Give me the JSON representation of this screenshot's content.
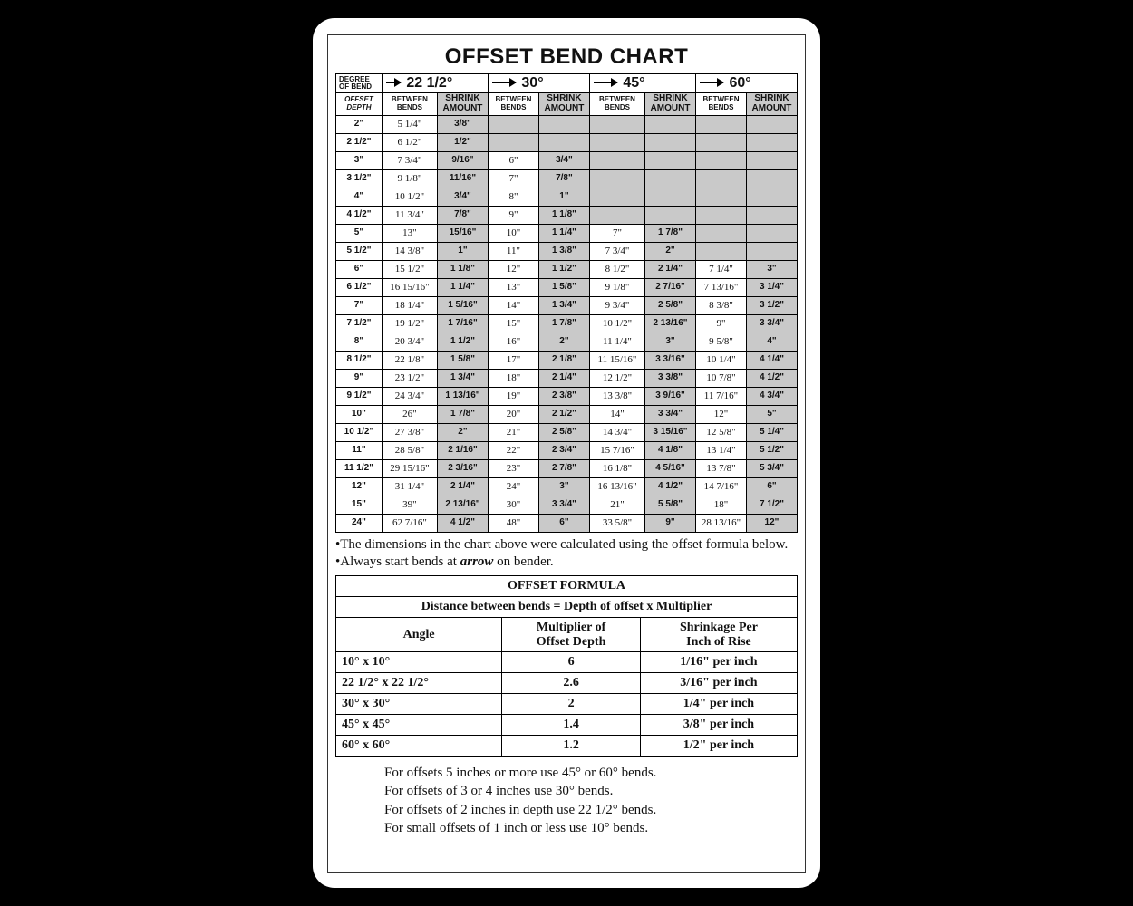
{
  "title": "OFFSET BEND CHART",
  "header": {
    "degree_label_l1": "DEGREE",
    "degree_label_l2": "OF BEND",
    "offset_label_l1": "OFFSET",
    "offset_label_l2": "DEPTH",
    "between_l1": "BETWEEN",
    "between_l2": "BENDS",
    "shrink_l1": "SHRINK",
    "shrink_l2": "AMOUNT",
    "degrees": [
      "22 1/2°",
      "30°",
      "45°",
      "60°"
    ]
  },
  "rows": [
    {
      "d": "2\"",
      "a": [
        "5 1/4\"",
        "3/8\""
      ],
      "b": [
        "",
        ""
      ],
      "c": [
        "",
        ""
      ],
      "e": [
        "",
        ""
      ]
    },
    {
      "d": "2 1/2\"",
      "a": [
        "6 1/2\"",
        "1/2\""
      ],
      "b": [
        "",
        ""
      ],
      "c": [
        "",
        ""
      ],
      "e": [
        "",
        ""
      ]
    },
    {
      "d": "3\"",
      "a": [
        "7 3/4\"",
        "9/16\""
      ],
      "b": [
        "6\"",
        "3/4\""
      ],
      "c": [
        "",
        ""
      ],
      "e": [
        "",
        ""
      ]
    },
    {
      "d": "3 1/2\"",
      "a": [
        "9 1/8\"",
        "11/16\""
      ],
      "b": [
        "7\"",
        "7/8\""
      ],
      "c": [
        "",
        ""
      ],
      "e": [
        "",
        ""
      ]
    },
    {
      "d": "4\"",
      "a": [
        "10 1/2\"",
        "3/4\""
      ],
      "b": [
        "8\"",
        "1\""
      ],
      "c": [
        "",
        ""
      ],
      "e": [
        "",
        ""
      ]
    },
    {
      "d": "4 1/2\"",
      "a": [
        "11 3/4\"",
        "7/8\""
      ],
      "b": [
        "9\"",
        "1 1/8\""
      ],
      "c": [
        "",
        ""
      ],
      "e": [
        "",
        ""
      ]
    },
    {
      "d": "5\"",
      "a": [
        "13\"",
        "15/16\""
      ],
      "b": [
        "10\"",
        "1 1/4\""
      ],
      "c": [
        "7\"",
        "1 7/8\""
      ],
      "e": [
        "",
        ""
      ]
    },
    {
      "d": "5 1/2\"",
      "a": [
        "14 3/8\"",
        "1\""
      ],
      "b": [
        "11\"",
        "1 3/8\""
      ],
      "c": [
        "7 3/4\"",
        "2\""
      ],
      "e": [
        "",
        ""
      ]
    },
    {
      "d": "6\"",
      "a": [
        "15 1/2\"",
        "1 1/8\""
      ],
      "b": [
        "12\"",
        "1 1/2\""
      ],
      "c": [
        "8 1/2\"",
        "2 1/4\""
      ],
      "e": [
        "7 1/4\"",
        "3\""
      ]
    },
    {
      "d": "6 1/2\"",
      "a": [
        "16 15/16\"",
        "1 1/4\""
      ],
      "b": [
        "13\"",
        "1 5/8\""
      ],
      "c": [
        "9 1/8\"",
        "2 7/16\""
      ],
      "e": [
        "7 13/16\"",
        "3 1/4\""
      ]
    },
    {
      "d": "7\"",
      "a": [
        "18 1/4\"",
        "1 5/16\""
      ],
      "b": [
        "14\"",
        "1 3/4\""
      ],
      "c": [
        "9 3/4\"",
        "2 5/8\""
      ],
      "e": [
        "8 3/8\"",
        "3 1/2\""
      ]
    },
    {
      "d": "7 1/2\"",
      "a": [
        "19 1/2\"",
        "1 7/16\""
      ],
      "b": [
        "15\"",
        "1 7/8\""
      ],
      "c": [
        "10 1/2\"",
        "2 13/16\""
      ],
      "e": [
        "9\"",
        "3 3/4\""
      ]
    },
    {
      "d": "8\"",
      "a": [
        "20 3/4\"",
        "1 1/2\""
      ],
      "b": [
        "16\"",
        "2\""
      ],
      "c": [
        "11 1/4\"",
        "3\""
      ],
      "e": [
        "9 5/8\"",
        "4\""
      ]
    },
    {
      "d": "8 1/2\"",
      "a": [
        "22 1/8\"",
        "1 5/8\""
      ],
      "b": [
        "17\"",
        "2 1/8\""
      ],
      "c": [
        "11 15/16\"",
        "3 3/16\""
      ],
      "e": [
        "10 1/4\"",
        "4 1/4\""
      ]
    },
    {
      "d": "9\"",
      "a": [
        "23 1/2\"",
        "1 3/4\""
      ],
      "b": [
        "18\"",
        "2 1/4\""
      ],
      "c": [
        "12 1/2\"",
        "3 3/8\""
      ],
      "e": [
        "10 7/8\"",
        "4 1/2\""
      ]
    },
    {
      "d": "9 1/2\"",
      "a": [
        "24 3/4\"",
        "1 13/16\""
      ],
      "b": [
        "19\"",
        "2 3/8\""
      ],
      "c": [
        "13 3/8\"",
        "3 9/16\""
      ],
      "e": [
        "11 7/16\"",
        "4 3/4\""
      ]
    },
    {
      "d": "10\"",
      "a": [
        "26\"",
        "1 7/8\""
      ],
      "b": [
        "20\"",
        "2 1/2\""
      ],
      "c": [
        "14\"",
        "3 3/4\""
      ],
      "e": [
        "12\"",
        "5\""
      ]
    },
    {
      "d": "10 1/2\"",
      "a": [
        "27 3/8\"",
        "2\""
      ],
      "b": [
        "21\"",
        "2 5/8\""
      ],
      "c": [
        "14 3/4\"",
        "3 15/16\""
      ],
      "e": [
        "12 5/8\"",
        "5 1/4\""
      ]
    },
    {
      "d": "11\"",
      "a": [
        "28 5/8\"",
        "2 1/16\""
      ],
      "b": [
        "22\"",
        "2 3/4\""
      ],
      "c": [
        "15 7/16\"",
        "4 1/8\""
      ],
      "e": [
        "13 1/4\"",
        "5 1/2\""
      ]
    },
    {
      "d": "11 1/2\"",
      "a": [
        "29 15/16\"",
        "2 3/16\""
      ],
      "b": [
        "23\"",
        "2 7/8\""
      ],
      "c": [
        "16 1/8\"",
        "4 5/16\""
      ],
      "e": [
        "13 7/8\"",
        "5 3/4\""
      ]
    },
    {
      "d": "12\"",
      "a": [
        "31 1/4\"",
        "2 1/4\""
      ],
      "b": [
        "24\"",
        "3\""
      ],
      "c": [
        "16 13/16\"",
        "4 1/2\""
      ],
      "e": [
        "14 7/16\"",
        "6\""
      ]
    },
    {
      "d": "15\"",
      "a": [
        "39\"",
        "2 13/16\""
      ],
      "b": [
        "30\"",
        "3 3/4\""
      ],
      "c": [
        "21\"",
        "5 5/8\""
      ],
      "e": [
        "18\"",
        "7 1/2\""
      ]
    },
    {
      "d": "24\"",
      "a": [
        "62 7/16\"",
        "4 1/2\""
      ],
      "b": [
        "48\"",
        "6\""
      ],
      "c": [
        "33 5/8\"",
        "9\""
      ],
      "e": [
        "28 13/16\"",
        "12\""
      ]
    }
  ],
  "notes": {
    "line1a": "•The dimensions in the chart above were calculated using the",
    "line1b": "offset formula below. •Always start bends at ",
    "arrow_word": "arrow",
    "line1c": " on bender."
  },
  "formula": {
    "title": "OFFSET FORMULA",
    "equation": "Distance between bends = Depth of offset x Multiplier",
    "head1": "Angle",
    "head2a": "Multiplier of",
    "head2b": "Offset Depth",
    "head3a": "Shrinkage Per",
    "head3b": "Inch of Rise",
    "rows": [
      {
        "angle": "10° x 10°",
        "mult": "6",
        "shrink": "1/16\" per inch"
      },
      {
        "angle": "22 1/2° x 22 1/2°",
        "mult": "2.6",
        "shrink": "3/16\" per inch"
      },
      {
        "angle": "30° x 30°",
        "mult": "2",
        "shrink": "1/4\" per inch"
      },
      {
        "angle": "45° x 45°",
        "mult": "1.4",
        "shrink": "3/8\" per inch"
      },
      {
        "angle": "60° x 60°",
        "mult": "1.2",
        "shrink": "1/2\" per inch"
      }
    ]
  },
  "guidelines": [
    "For offsets 5 inches or more use 45° or 60° bends.",
    "For offsets of 3 or 4 inches use 30° bends.",
    "For offsets of 2 inches in depth use 22 1/2° bends.",
    "For small offsets of 1 inch or less use 10° bends."
  ],
  "col_widths": [
    "10%",
    "12%",
    "11%",
    "11%",
    "11%",
    "12%",
    "11%",
    "11%",
    "11%"
  ]
}
